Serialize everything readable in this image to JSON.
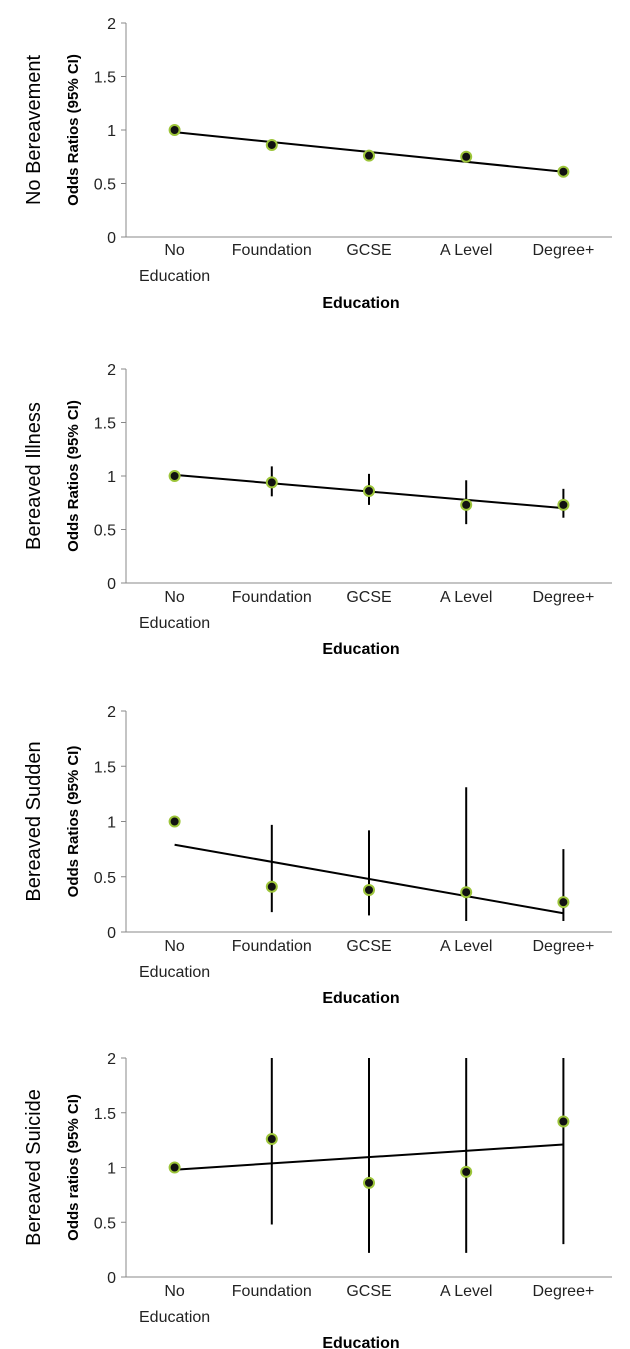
{
  "colors": {
    "marker_fill": "#111111",
    "marker_edge": "#9dc53a",
    "line": "#000000",
    "axis": "#888888"
  },
  "chart_data": [
    {
      "type": "scatter",
      "title": "No Bereavement",
      "xlabel": "Education",
      "ylabel": "Odds Ratios (95% CI)",
      "categories": [
        "No Education",
        "Foundation",
        "GCSE",
        "A Level",
        "Degree+"
      ],
      "tick_lines": [
        [
          "No",
          "Education"
        ],
        [
          "Foundation"
        ],
        [
          "GCSE"
        ],
        [
          "A Level"
        ],
        [
          "Degree+"
        ]
      ],
      "y_ticks": [
        "0",
        "0.5",
        "1",
        "1.5",
        "2"
      ],
      "ylim": [
        0,
        2
      ],
      "values": [
        1.0,
        0.86,
        0.76,
        0.75,
        0.61
      ],
      "ci_low": [
        null,
        null,
        null,
        null,
        null
      ],
      "ci_high": [
        null,
        null,
        null,
        null,
        null
      ],
      "trend": [
        0.98,
        0.61
      ],
      "grid": false
    },
    {
      "type": "scatter",
      "title": "Bereaved Illness",
      "xlabel": "Education",
      "ylabel": "Odds Ratios (95% CI)",
      "categories": [
        "No Education",
        "Foundation",
        "GCSE",
        "A Level",
        "Degree+"
      ],
      "tick_lines": [
        [
          "No",
          "Education"
        ],
        [
          "Foundation"
        ],
        [
          "GCSE"
        ],
        [
          "A Level"
        ],
        [
          "Degree+"
        ]
      ],
      "y_ticks": [
        "0",
        "0.5",
        "1",
        "1.5",
        "2"
      ],
      "ylim": [
        0,
        2
      ],
      "values": [
        1.0,
        0.94,
        0.86,
        0.73,
        0.73
      ],
      "ci_low": [
        null,
        0.81,
        0.73,
        0.55,
        0.61
      ],
      "ci_high": [
        null,
        1.09,
        1.02,
        0.96,
        0.88
      ],
      "trend": [
        1.01,
        0.7
      ],
      "grid": false
    },
    {
      "type": "scatter",
      "title": "Bereaved Sudden",
      "xlabel": "Education",
      "ylabel": "Odds Ratios (95% CI)",
      "categories": [
        "No Education",
        "Foundation",
        "GCSE",
        "A Level",
        "Degree+"
      ],
      "tick_lines": [
        [
          "No",
          "Education"
        ],
        [
          "Foundation"
        ],
        [
          "GCSE"
        ],
        [
          "A Level"
        ],
        [
          "Degree+"
        ]
      ],
      "y_ticks": [
        "0",
        "0.5",
        "1",
        "1.5",
        "2"
      ],
      "ylim": [
        0,
        2
      ],
      "values": [
        1.0,
        0.41,
        0.38,
        0.36,
        0.27
      ],
      "ci_low": [
        null,
        0.18,
        0.15,
        0.1,
        0.1
      ],
      "ci_high": [
        null,
        0.97,
        0.92,
        1.31,
        0.75
      ],
      "trend": [
        0.79,
        0.17
      ],
      "grid": false
    },
    {
      "type": "scatter",
      "title": "Bereaved Suicide",
      "xlabel": "Education",
      "ylabel": "Odds ratios (95% CI)",
      "categories": [
        "No Education",
        "Foundation",
        "GCSE",
        "A Level",
        "Degree+"
      ],
      "tick_lines": [
        [
          "No",
          "Education"
        ],
        [
          "Foundation"
        ],
        [
          "GCSE"
        ],
        [
          "A Level"
        ],
        [
          "Degree+"
        ]
      ],
      "y_ticks": [
        "0",
        "0.5",
        "1",
        "1.5",
        "2"
      ],
      "ylim": [
        0,
        2
      ],
      "values": [
        1.0,
        1.26,
        0.86,
        0.96,
        1.42
      ],
      "ci_low": [
        null,
        0.48,
        0.22,
        0.22,
        0.3
      ],
      "ci_high": [
        null,
        2.0,
        2.0,
        2.0,
        2.0
      ],
      "trend": [
        0.98,
        1.21
      ],
      "grid": false
    }
  ]
}
